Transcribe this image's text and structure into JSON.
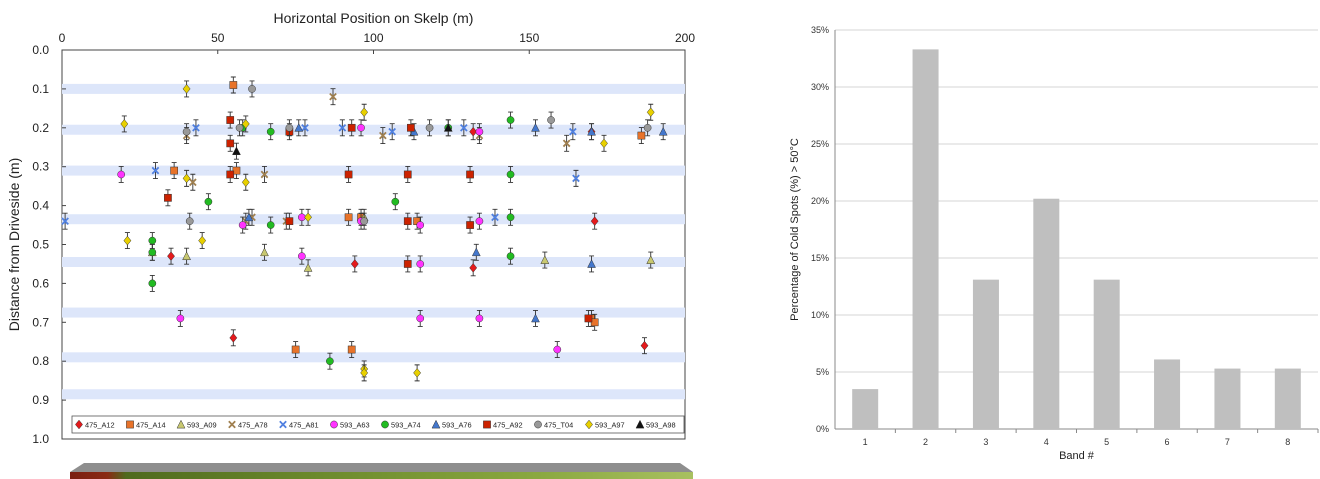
{
  "chart_data": [
    {
      "type": "scatter",
      "xlabel": "Horizontal Position on Skelp (m)",
      "ylabel": "Distance from Driveside (m)",
      "xlim": [
        0,
        200
      ],
      "ylim": [
        0,
        1.0
      ],
      "y_inverted": true,
      "x_ticks": [
        "0",
        "50",
        "100",
        "150",
        "200"
      ],
      "y_ticks": [
        "0.0",
        "0.1",
        "0.2",
        "0.3",
        "0.4",
        "0.5",
        "0.6",
        "0.7",
        "0.8",
        "0.9",
        "1.0"
      ],
      "bands": [
        0.1,
        0.205,
        0.31,
        0.435,
        0.545,
        0.675,
        0.79,
        0.885
      ],
      "grid": false,
      "legend_position": "bottom",
      "series": [
        {
          "name": "475_A12",
          "marker": "diamond",
          "color": "#e41a1c",
          "points": [
            [
              35,
              0.53
            ],
            [
              55,
              0.74
            ],
            [
              94,
              0.55
            ],
            [
              132,
              0.56
            ],
            [
              132,
              0.21
            ],
            [
              170,
              0.21
            ],
            [
              171,
              0.44
            ],
            [
              187,
              0.76
            ]
          ]
        },
        {
          "name": "475_A14",
          "marker": "square",
          "color": "#e8732a",
          "points": [
            [
              36,
              0.31
            ],
            [
              55,
              0.09
            ],
            [
              56,
              0.31
            ],
            [
              75,
              0.77
            ],
            [
              92,
              0.43
            ],
            [
              93,
              0.77
            ],
            [
              96,
              0.43
            ],
            [
              114,
              0.44
            ],
            [
              170,
              0.69
            ],
            [
              171,
              0.7
            ],
            [
              186,
              0.22
            ]
          ]
        },
        {
          "name": "593_A09",
          "marker": "triangle",
          "color": "#c8c870",
          "points": [
            [
              29,
              0.52
            ],
            [
              40,
              0.53
            ],
            [
              65,
              0.52
            ],
            [
              79,
              0.56
            ],
            [
              97,
              0.43
            ],
            [
              155,
              0.54
            ],
            [
              189,
              0.54
            ]
          ]
        },
        {
          "name": "475_A78",
          "marker": "x",
          "color": "#a08050",
          "points": [
            [
              40,
              0.22
            ],
            [
              42,
              0.34
            ],
            [
              59,
              0.44
            ],
            [
              61,
              0.43
            ],
            [
              65,
              0.32
            ],
            [
              72,
              0.44
            ],
            [
              87,
              0.12
            ],
            [
              103,
              0.22
            ],
            [
              134,
              0.22
            ],
            [
              162,
              0.24
            ]
          ]
        },
        {
          "name": "475_A81",
          "marker": "x",
          "color": "#5080e0",
          "points": [
            [
              1,
              0.44
            ],
            [
              30,
              0.31
            ],
            [
              43,
              0.2
            ],
            [
              78,
              0.2
            ],
            [
              90,
              0.2
            ],
            [
              106,
              0.21
            ],
            [
              129,
              0.2
            ],
            [
              139,
              0.43
            ],
            [
              164,
              0.21
            ],
            [
              165,
              0.33
            ]
          ]
        },
        {
          "name": "593_A63",
          "marker": "circle",
          "color": "#ff33ff",
          "points": [
            [
              19,
              0.32
            ],
            [
              38,
              0.69
            ],
            [
              58,
              0.45
            ],
            [
              77,
              0.53
            ],
            [
              77,
              0.43
            ],
            [
              96,
              0.2
            ],
            [
              96,
              0.44
            ],
            [
              115,
              0.45
            ],
            [
              115,
              0.69
            ],
            [
              115,
              0.55
            ],
            [
              134,
              0.21
            ],
            [
              134,
              0.44
            ],
            [
              134,
              0.69
            ],
            [
              159,
              0.77
            ]
          ]
        },
        {
          "name": "593_A74",
          "marker": "circle",
          "color": "#22bb22",
          "points": [
            [
              29,
              0.49
            ],
            [
              29,
              0.52
            ],
            [
              29,
              0.6
            ],
            [
              47,
              0.39
            ],
            [
              58,
              0.2
            ],
            [
              67,
              0.21
            ],
            [
              67,
              0.45
            ],
            [
              86,
              0.8
            ],
            [
              107,
              0.39
            ],
            [
              124,
              0.2
            ],
            [
              144,
              0.18
            ],
            [
              144,
              0.43
            ],
            [
              144,
              0.32
            ],
            [
              144,
              0.53
            ]
          ]
        },
        {
          "name": "593_A76",
          "marker": "triangle",
          "color": "#4477cc",
          "points": [
            [
              60,
              0.43
            ],
            [
              76,
              0.2
            ],
            [
              113,
              0.21
            ],
            [
              133,
              0.52
            ],
            [
              152,
              0.69
            ],
            [
              152,
              0.2
            ],
            [
              170,
              0.55
            ],
            [
              170,
              0.21
            ],
            [
              193,
              0.21
            ]
          ]
        },
        {
          "name": "475_A92",
          "marker": "square",
          "color": "#cc2200",
          "points": [
            [
              34,
              0.38
            ],
            [
              54,
              0.18
            ],
            [
              54,
              0.24
            ],
            [
              54,
              0.32
            ],
            [
              73,
              0.44
            ],
            [
              73,
              0.21
            ],
            [
              92,
              0.32
            ],
            [
              93,
              0.2
            ],
            [
              111,
              0.32
            ],
            [
              111,
              0.44
            ],
            [
              111,
              0.55
            ],
            [
              112,
              0.2
            ],
            [
              131,
              0.32
            ],
            [
              131,
              0.45
            ],
            [
              169,
              0.69
            ]
          ]
        },
        {
          "name": "475_T04",
          "marker": "circle",
          "color": "#999999",
          "points": [
            [
              40,
              0.21
            ],
            [
              41,
              0.44
            ],
            [
              57,
              0.2
            ],
            [
              61,
              0.1
            ],
            [
              73,
              0.2
            ],
            [
              97,
              0.44
            ],
            [
              118,
              0.2
            ],
            [
              157,
              0.18
            ],
            [
              188,
              0.2
            ]
          ]
        },
        {
          "name": "593_A97",
          "marker": "diamond",
          "color": "#e8d000",
          "points": [
            [
              20,
              0.19
            ],
            [
              21,
              0.49
            ],
            [
              40,
              0.1
            ],
            [
              40,
              0.33
            ],
            [
              45,
              0.49
            ],
            [
              59,
              0.19
            ],
            [
              59,
              0.34
            ],
            [
              79,
              0.43
            ],
            [
              97,
              0.16
            ],
            [
              97,
              0.82
            ],
            [
              97,
              0.83
            ],
            [
              114,
              0.83
            ],
            [
              174,
              0.24
            ],
            [
              189,
              0.16
            ]
          ]
        },
        {
          "name": "593_A98",
          "marker": "triangle",
          "color": "#111111",
          "points": [
            [
              56,
              0.26
            ],
            [
              124,
              0.2
            ]
          ]
        }
      ]
    },
    {
      "type": "bar",
      "xlabel": "Band #",
      "ylabel": "Percentage of Cold Spots (%) > 50°C",
      "categories": [
        "1",
        "2",
        "3",
        "4",
        "5",
        "6",
        "7",
        "8"
      ],
      "values": [
        3.5,
        33.3,
        13.1,
        20.2,
        13.1,
        6.1,
        5.3,
        5.3
      ],
      "ylim": [
        0,
        35
      ],
      "y_ticks": [
        "0%",
        "5%",
        "10%",
        "15%",
        "20%",
        "25%",
        "30%",
        "35%"
      ],
      "grid": true,
      "bar_color": "#bfbfbf"
    }
  ]
}
